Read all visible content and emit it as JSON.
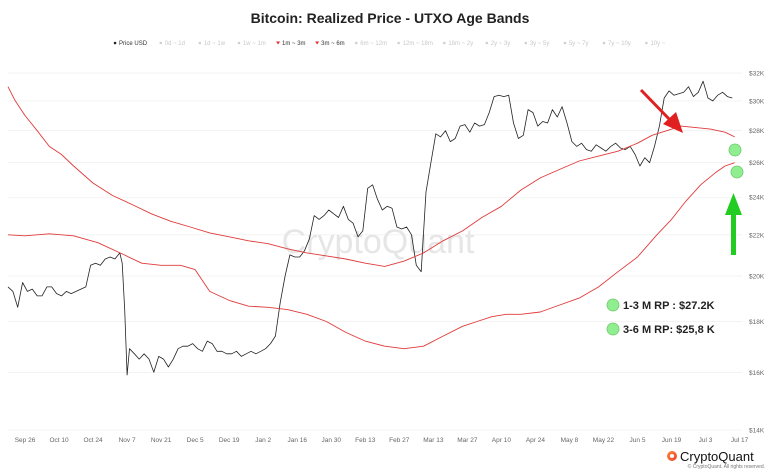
{
  "branding": {
    "watermark": "CryptoQuant",
    "logo_text": "CryptoQuant",
    "copyright": "© CryptoQuant. All rights reserved."
  },
  "annotations": [
    {
      "label": "1-3 M RP : $27.2K",
      "color": "#90ee90"
    },
    {
      "label": "3-6 M RP: $25,8 K",
      "color": "#90ee90"
    }
  ],
  "arrows": [
    {
      "color": "#e02020",
      "direction": "down"
    },
    {
      "color": "#22cc22",
      "direction": "up"
    }
  ],
  "chart_data": {
    "type": "line",
    "title": "Bitcoin: Realized Price - UTXO Age Bands",
    "legend": [
      {
        "label": "Price USD",
        "color": "#222222",
        "active": true
      },
      {
        "label": "0d ~ 1d",
        "color": "#cfcfcf",
        "active": false
      },
      {
        "label": "1d ~ 1w",
        "color": "#cfcfcf",
        "active": false
      },
      {
        "label": "1w ~ 1m",
        "color": "#cfcfcf",
        "active": false
      },
      {
        "label": "1m ~ 3m",
        "color": "#e03030",
        "active": true
      },
      {
        "label": "3m ~ 6m",
        "color": "#e03030",
        "active": true
      },
      {
        "label": "6m ~ 12m",
        "color": "#cfcfcf",
        "active": false
      },
      {
        "label": "12m ~ 18m",
        "color": "#cfcfcf",
        "active": false
      },
      {
        "label": "18m ~ 2y",
        "color": "#cfcfcf",
        "active": false
      },
      {
        "label": "2y ~ 3y",
        "color": "#cfcfcf",
        "active": false
      },
      {
        "label": "3y ~ 5y",
        "color": "#cfcfcf",
        "active": false
      },
      {
        "label": "5y ~ 7y",
        "color": "#cfcfcf",
        "active": false
      },
      {
        "label": "7y ~ 10y",
        "color": "#cfcfcf",
        "active": false
      },
      {
        "label": "10y ~",
        "color": "#cfcfcf",
        "active": false
      }
    ],
    "x_ticks": [
      {
        "label": "Sep 26",
        "d": 0
      },
      {
        "label": "Oct 10",
        "d": 14
      },
      {
        "label": "Oct 24",
        "d": 28
      },
      {
        "label": "Nov 7",
        "d": 42
      },
      {
        "label": "Nov 21",
        "d": 56
      },
      {
        "label": "Dec 5",
        "d": 70
      },
      {
        "label": "Dec 19",
        "d": 84
      },
      {
        "label": "Jan 2",
        "d": 98
      },
      {
        "label": "Jan 16",
        "d": 112
      },
      {
        "label": "Jan 30",
        "d": 126
      },
      {
        "label": "Feb 13",
        "d": 140
      },
      {
        "label": "Feb 27",
        "d": 154
      },
      {
        "label": "Mar 13",
        "d": 168
      },
      {
        "label": "Mar 27",
        "d": 182
      },
      {
        "label": "Apr 10",
        "d": 196
      },
      {
        "label": "Apr 24",
        "d": 210
      },
      {
        "label": "May 8",
        "d": 224
      },
      {
        "label": "May 22",
        "d": 238
      },
      {
        "label": "Jun 5",
        "d": 252
      },
      {
        "label": "Jun 19",
        "d": 266
      },
      {
        "label": "Jul 3",
        "d": 280
      },
      {
        "label": "Jul 17",
        "d": 294
      }
    ],
    "y_ticks": [
      14000,
      16000,
      18000,
      20000,
      22000,
      24000,
      26000,
      28000,
      30000,
      32000
    ],
    "y_tick_labels": [
      "$14K",
      "$16K",
      "$18K",
      "$20K",
      "$22K",
      "$24K",
      "$26K",
      "$28K",
      "$30K",
      "$32K"
    ],
    "ylim": [
      14000,
      32600
    ],
    "xlim": [
      -7,
      295
    ],
    "y_scale": "log",
    "grid": "horizontal",
    "series": [
      {
        "name": "Price USD",
        "color": "#222222",
        "width": 0.8,
        "points": [
          [
            -7,
            19500
          ],
          [
            -5,
            19300
          ],
          [
            -3,
            18600
          ],
          [
            -1,
            19700
          ],
          [
            1,
            19300
          ],
          [
            3,
            19400
          ],
          [
            5,
            19100
          ],
          [
            7,
            19100
          ],
          [
            9,
            19500
          ],
          [
            11,
            19500
          ],
          [
            13,
            19200
          ],
          [
            15,
            19100
          ],
          [
            17,
            19300
          ],
          [
            19,
            19200
          ],
          [
            21,
            19300
          ],
          [
            23,
            19400
          ],
          [
            25,
            19500
          ],
          [
            27,
            20500
          ],
          [
            29,
            20600
          ],
          [
            31,
            20500
          ],
          [
            33,
            20800
          ],
          [
            35,
            20900
          ],
          [
            37,
            20800
          ],
          [
            39,
            21100
          ],
          [
            40,
            20600
          ],
          [
            41,
            18500
          ],
          [
            42,
            15900
          ],
          [
            43,
            16900
          ],
          [
            45,
            16700
          ],
          [
            47,
            16500
          ],
          [
            49,
            16700
          ],
          [
            51,
            16500
          ],
          [
            53,
            16000
          ],
          [
            55,
            16600
          ],
          [
            57,
            16500
          ],
          [
            59,
            16200
          ],
          [
            61,
            16500
          ],
          [
            63,
            16900
          ],
          [
            65,
            17000
          ],
          [
            67,
            17000
          ],
          [
            69,
            17100
          ],
          [
            71,
            16900
          ],
          [
            73,
            16800
          ],
          [
            75,
            17200
          ],
          [
            77,
            17100
          ],
          [
            79,
            16800
          ],
          [
            81,
            16800
          ],
          [
            83,
            16700
          ],
          [
            85,
            16700
          ],
          [
            87,
            16800
          ],
          [
            89,
            16600
          ],
          [
            91,
            16700
          ],
          [
            93,
            16800
          ],
          [
            95,
            16700
          ],
          [
            97,
            16800
          ],
          [
            99,
            16900
          ],
          [
            101,
            17100
          ],
          [
            103,
            17400
          ],
          [
            105,
            18800
          ],
          [
            107,
            20000
          ],
          [
            109,
            21000
          ],
          [
            111,
            20900
          ],
          [
            113,
            20900
          ],
          [
            115,
            21200
          ],
          [
            117,
            21800
          ],
          [
            119,
            23000
          ],
          [
            121,
            22800
          ],
          [
            123,
            23000
          ],
          [
            125,
            23300
          ],
          [
            127,
            23100
          ],
          [
            129,
            22900
          ],
          [
            131,
            23500
          ],
          [
            133,
            22800
          ],
          [
            135,
            22600
          ],
          [
            137,
            21900
          ],
          [
            139,
            22200
          ],
          [
            141,
            24500
          ],
          [
            143,
            24700
          ],
          [
            145,
            23900
          ],
          [
            147,
            23300
          ],
          [
            149,
            23500
          ],
          [
            151,
            23400
          ],
          [
            153,
            22400
          ],
          [
            155,
            22300
          ],
          [
            157,
            22400
          ],
          [
            159,
            22000
          ],
          [
            161,
            20500
          ],
          [
            163,
            20200
          ],
          [
            165,
            24300
          ],
          [
            167,
            26000
          ],
          [
            169,
            27800
          ],
          [
            171,
            27600
          ],
          [
            173,
            28000
          ],
          [
            175,
            27300
          ],
          [
            177,
            27500
          ],
          [
            179,
            28300
          ],
          [
            181,
            28400
          ],
          [
            183,
            27900
          ],
          [
            185,
            28500
          ],
          [
            187,
            28300
          ],
          [
            189,
            28400
          ],
          [
            191,
            29200
          ],
          [
            193,
            30300
          ],
          [
            195,
            30400
          ],
          [
            197,
            30300
          ],
          [
            199,
            30400
          ],
          [
            201,
            28500
          ],
          [
            203,
            27500
          ],
          [
            205,
            27700
          ],
          [
            207,
            29400
          ],
          [
            209,
            29200
          ],
          [
            211,
            28300
          ],
          [
            213,
            28600
          ],
          [
            215,
            28500
          ],
          [
            217,
            29400
          ],
          [
            219,
            28900
          ],
          [
            221,
            29600
          ],
          [
            223,
            28500
          ],
          [
            225,
            27300
          ],
          [
            227,
            27000
          ],
          [
            229,
            27200
          ],
          [
            231,
            26800
          ],
          [
            233,
            26700
          ],
          [
            235,
            27100
          ],
          [
            237,
            26900
          ],
          [
            239,
            26700
          ],
          [
            241,
            27000
          ],
          [
            243,
            27200
          ],
          [
            245,
            26900
          ],
          [
            247,
            26800
          ],
          [
            249,
            27000
          ],
          [
            251,
            26500
          ],
          [
            253,
            25800
          ],
          [
            255,
            26300
          ],
          [
            257,
            26000
          ],
          [
            259,
            27000
          ],
          [
            261,
            28300
          ],
          [
            263,
            30200
          ],
          [
            265,
            30700
          ],
          [
            267,
            30400
          ],
          [
            269,
            30500
          ],
          [
            271,
            30600
          ],
          [
            273,
            31000
          ],
          [
            275,
            30300
          ],
          [
            277,
            30600
          ],
          [
            279,
            31400
          ],
          [
            281,
            30200
          ],
          [
            283,
            30000
          ],
          [
            285,
            30400
          ],
          [
            287,
            30600
          ],
          [
            289,
            30300
          ],
          [
            291,
            30200
          ]
        ]
      },
      {
        "name": "1m ~ 3m",
        "color": "#e03a3a",
        "width": 0.9,
        "points": [
          [
            -7,
            31000
          ],
          [
            -4,
            30000
          ],
          [
            0,
            29000
          ],
          [
            5,
            28000
          ],
          [
            10,
            27000
          ],
          [
            15,
            26500
          ],
          [
            20,
            25800
          ],
          [
            28,
            24800
          ],
          [
            36,
            24100
          ],
          [
            44,
            23600
          ],
          [
            52,
            23100
          ],
          [
            60,
            22700
          ],
          [
            68,
            22400
          ],
          [
            76,
            22100
          ],
          [
            84,
            21900
          ],
          [
            92,
            21700
          ],
          [
            100,
            21550
          ],
          [
            108,
            21300
          ],
          [
            116,
            21100
          ],
          [
            124,
            20950
          ],
          [
            132,
            20800
          ],
          [
            140,
            20600
          ],
          [
            148,
            20450
          ],
          [
            156,
            20700
          ],
          [
            164,
            21100
          ],
          [
            172,
            21700
          ],
          [
            180,
            22200
          ],
          [
            188,
            22900
          ],
          [
            196,
            23500
          ],
          [
            204,
            24400
          ],
          [
            212,
            25100
          ],
          [
            220,
            25600
          ],
          [
            228,
            26100
          ],
          [
            236,
            26400
          ],
          [
            244,
            26700
          ],
          [
            252,
            27200
          ],
          [
            258,
            27700
          ],
          [
            264,
            28000
          ],
          [
            270,
            28300
          ],
          [
            276,
            28200
          ],
          [
            282,
            28100
          ],
          [
            288,
            27900
          ],
          [
            292,
            27600
          ]
        ]
      },
      {
        "name": "3m ~ 6m",
        "color": "#e03a3a",
        "width": 0.9,
        "points": [
          [
            -7,
            22000
          ],
          [
            0,
            21950
          ],
          [
            10,
            22050
          ],
          [
            20,
            21950
          ],
          [
            30,
            21600
          ],
          [
            40,
            21050
          ],
          [
            48,
            20600
          ],
          [
            56,
            20500
          ],
          [
            64,
            20500
          ],
          [
            70,
            20300
          ],
          [
            76,
            19300
          ],
          [
            84,
            18900
          ],
          [
            92,
            18650
          ],
          [
            100,
            18600
          ],
          [
            108,
            18500
          ],
          [
            116,
            18300
          ],
          [
            124,
            18000
          ],
          [
            132,
            17550
          ],
          [
            140,
            17200
          ],
          [
            148,
            17000
          ],
          [
            156,
            16900
          ],
          [
            164,
            17000
          ],
          [
            172,
            17400
          ],
          [
            180,
            17800
          ],
          [
            186,
            18000
          ],
          [
            192,
            18200
          ],
          [
            198,
            18300
          ],
          [
            204,
            18300
          ],
          [
            212,
            18400
          ],
          [
            220,
            18700
          ],
          [
            228,
            19000
          ],
          [
            236,
            19500
          ],
          [
            244,
            20200
          ],
          [
            252,
            20900
          ],
          [
            260,
            22000
          ],
          [
            266,
            22800
          ],
          [
            272,
            23800
          ],
          [
            278,
            24700
          ],
          [
            284,
            25400
          ],
          [
            288,
            25800
          ],
          [
            292,
            26000
          ]
        ]
      }
    ]
  }
}
